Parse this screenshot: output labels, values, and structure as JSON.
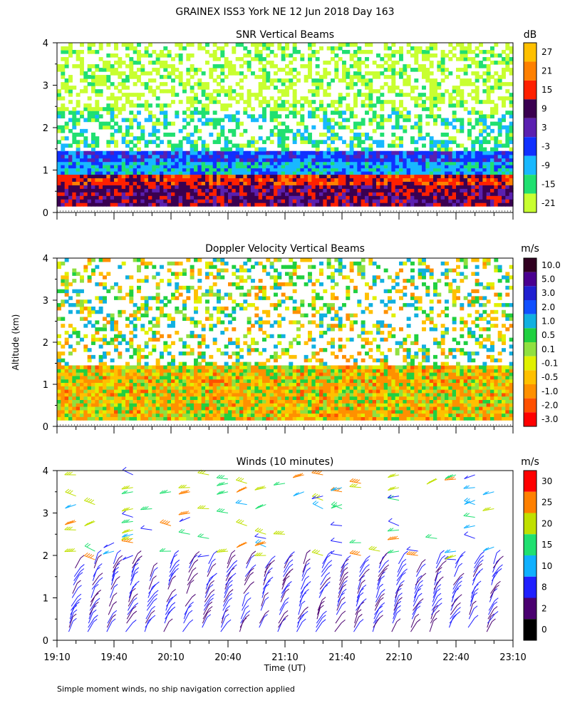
{
  "title": "GRAINEX ISS3 York NE  12 Jun 2018 Day 163",
  "ylabel": "Altitude (km)",
  "xlabel": "Time (UT)",
  "footnote": "Simple moment winds, no ship navigation correction applied",
  "chart_data": [
    {
      "type": "heatmap",
      "title": "SNR Vertical Beams",
      "unit": "dB",
      "ylim": [
        0,
        4
      ],
      "yticks": [
        "0",
        "1",
        "2",
        "3",
        "4"
      ],
      "xlim": [
        "19:10",
        "23:10"
      ],
      "colorbar": {
        "labels": [
          "27",
          "21",
          "15",
          "9",
          "3",
          "-3",
          "-9",
          "-15",
          "-21"
        ],
        "colors": [
          "#ffc000",
          "#ff8000",
          "#ff2000",
          "#3a0050",
          "#5a20b0",
          "#1030ff",
          "#18b8ff",
          "#20e070",
          "#c8ff30"
        ]
      },
      "layers": [
        {
          "from": 0.15,
          "to": 0.65,
          "value": 9
        },
        {
          "from": 0.65,
          "to": 0.9,
          "value": 15
        },
        {
          "from": 0.9,
          "to": 1.2,
          "value": -9
        },
        {
          "from": 1.2,
          "to": 1.45,
          "value": -3
        },
        {
          "from": 1.45,
          "to": 2.4,
          "value": -15,
          "sparse": true
        },
        {
          "from": 2.4,
          "to": 4.0,
          "value": -21,
          "sparse": true
        }
      ]
    },
    {
      "type": "heatmap",
      "title": "Doppler Velocity Vertical Beams",
      "unit": "m/s",
      "ylim": [
        0,
        4
      ],
      "yticks": [
        "0",
        "1",
        "2",
        "3",
        "4"
      ],
      "xlim": [
        "19:10",
        "23:10"
      ],
      "colorbar": {
        "labels": [
          "10.0",
          "5.0",
          "3.0",
          "2.0",
          "1.0",
          "0.5",
          "0.1",
          "-0.1",
          "-0.5",
          "-1.0",
          "-2.0",
          "-3.0"
        ],
        "colors": [
          "#300020",
          "#4a0090",
          "#2020d0",
          "#1050ff",
          "#10b0e0",
          "#20d040",
          "#90e040",
          "#e0f000",
          "#ffc000",
          "#ff9000",
          "#ff5000",
          "#ff0000"
        ]
      },
      "layers": [
        {
          "from": 0.15,
          "to": 1.45,
          "value": -0.5
        },
        {
          "from": 1.45,
          "to": 4.0,
          "value": 0.1,
          "sparse": true
        }
      ]
    },
    {
      "type": "wind-barbs",
      "title": "Winds (10 minutes)",
      "unit": "m/s",
      "ylim": [
        0,
        4
      ],
      "yticks": [
        "0",
        "1",
        "2",
        "3",
        "4"
      ],
      "xticks": [
        "19:10",
        "19:40",
        "20:10",
        "20:40",
        "21:10",
        "21:40",
        "22:10",
        "22:40",
        "23:10"
      ],
      "colorbar": {
        "labels": [
          "30",
          "25",
          "20",
          "15",
          "10",
          "8",
          "2",
          "0"
        ],
        "colors": [
          "#ff0000",
          "#ff8000",
          "#c0e000",
          "#20e070",
          "#10b0ff",
          "#2020ff",
          "#4a0070",
          "#000000"
        ]
      },
      "time_steps_min": 10,
      "lowlevel_speed_ms": 4,
      "upper_speed_ms": 15
    }
  ]
}
